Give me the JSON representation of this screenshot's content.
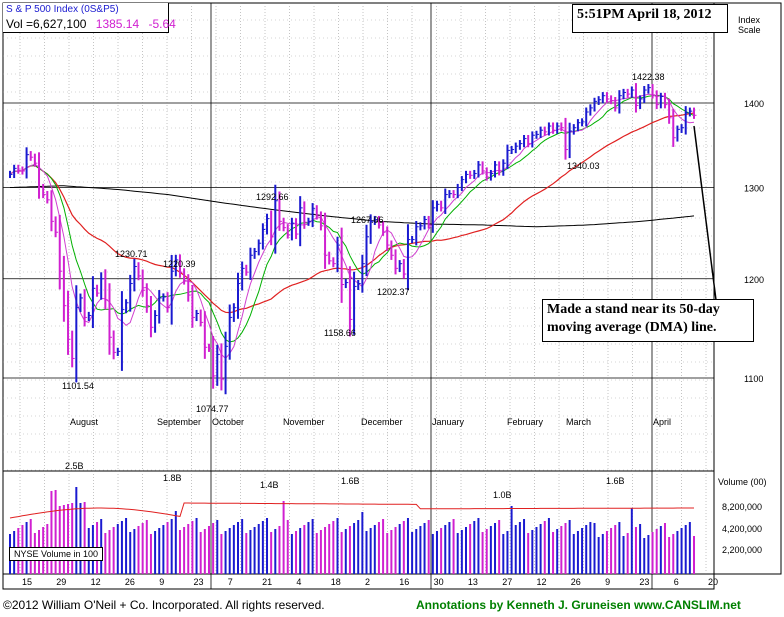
{
  "header": {
    "index_name": "S & P 500 Index",
    "symbol": "(0S&P5)",
    "vol_label": "Vol =",
    "vol_value": "6,627,100",
    "last_price": "1385.14",
    "change": "-5.64"
  },
  "timestamp": "5:51PM April 18, 2012",
  "axis": {
    "index_scale": "Index\nScale",
    "price_ticks": [
      "1400",
      "1300",
      "1200",
      "1100"
    ],
    "volume_label": "Volume (00)",
    "volume_ticks": [
      "8,200,000",
      "4,200,000",
      "2,200,000"
    ],
    "nyse_label": "NYSE Volume in 100",
    "date_ticks": [
      "15",
      "29",
      "12",
      "26",
      "9",
      "23",
      "7",
      "21",
      "4",
      "18",
      "2",
      "16",
      "30",
      "13",
      "27",
      "12",
      "26",
      "9",
      "23",
      "6",
      "20"
    ],
    "month_labels": [
      "August",
      "September",
      "October",
      "November",
      "December",
      "January",
      "February",
      "March",
      "April"
    ]
  },
  "annotation": "Made a stand near its 50-day moving average (DMA) line.",
  "footer": {
    "copyright": "©2012 William O'Neil + Co. Incorporated. All rights reserved.",
    "annotations_by": "Annotations by Kenneth J. Gruneisen www.CANSLIM.net"
  },
  "colors": {
    "up_bar": "#1a1ad0",
    "down_bar": "#d020d0",
    "ma50": "#e02020",
    "ma200": "#000000",
    "ma10": "#00b000",
    "ma_short": "#d040d0"
  },
  "chart_data": {
    "type": "line",
    "title": "S & P 500 Index",
    "ylabel": "Index Scale",
    "ylim": [
      1050,
      1450
    ],
    "y_log_scale": true,
    "price_labels": [
      {
        "text": "1101.54",
        "value": 1101.54
      },
      {
        "text": "1230.71",
        "value": 1230.71
      },
      {
        "text": "1220.39",
        "value": 1220.39
      },
      {
        "text": "1074.77",
        "value": 1074.77
      },
      {
        "text": "1292.66",
        "value": 1292.66
      },
      {
        "text": "1158.66",
        "value": 1158.66
      },
      {
        "text": "1267.06",
        "value": 1267.06
      },
      {
        "text": "1202.37",
        "value": 1202.37
      },
      {
        "text": "1340.03",
        "value": 1340.03
      },
      {
        "text": "1422.38",
        "value": 1422.38
      }
    ],
    "volume_labels": [
      "2.5B",
      "1.8B",
      "1.4B",
      "1.6B",
      "1.0B",
      "1.6B"
    ],
    "closes": [
      1315,
      1322,
      1320,
      1319,
      1338,
      1335,
      1328,
      1300,
      1292,
      1286,
      1262,
      1250,
      1208,
      1172,
      1138,
      1119,
      1170,
      1180,
      1160,
      1162,
      1190,
      1185,
      1200,
      1178,
      1140,
      1125,
      1126,
      1168,
      1175,
      1195,
      1213,
      1203,
      1188,
      1172,
      1150,
      1162,
      1180,
      1181,
      1170,
      1208,
      1220,
      1207,
      1198,
      1183,
      1160,
      1164,
      1155,
      1130,
      1129,
      1102,
      1123,
      1099,
      1131,
      1160,
      1170,
      1195,
      1211,
      1207,
      1225,
      1229,
      1238,
      1253,
      1265,
      1245,
      1285,
      1262,
      1255,
      1247,
      1260,
      1248,
      1277,
      1261,
      1262,
      1276,
      1268,
      1257,
      1225,
      1219,
      1216,
      1236,
      1194,
      1196,
      1158,
      1192,
      1195,
      1216,
      1245,
      1262,
      1264,
      1258,
      1250,
      1236,
      1225,
      1211,
      1216,
      1205,
      1242,
      1242,
      1256,
      1257,
      1264,
      1258,
      1277,
      1281,
      1277,
      1292,
      1293,
      1292,
      1300,
      1309,
      1315,
      1314,
      1316,
      1326,
      1319,
      1312,
      1316,
      1326,
      1318,
      1328,
      1343,
      1344,
      1348,
      1351,
      1357,
      1351,
      1361,
      1362,
      1367,
      1365,
      1372,
      1367,
      1372,
      1370,
      1344,
      1366,
      1370,
      1376,
      1377,
      1389,
      1394,
      1402,
      1404,
      1409,
      1405,
      1403,
      1394,
      1409,
      1413,
      1411,
      1416,
      1397,
      1405,
      1416,
      1419,
      1410,
      1398,
      1408,
      1398,
      1382,
      1358,
      1368,
      1370,
      1388,
      1390,
      1385
    ]
  }
}
